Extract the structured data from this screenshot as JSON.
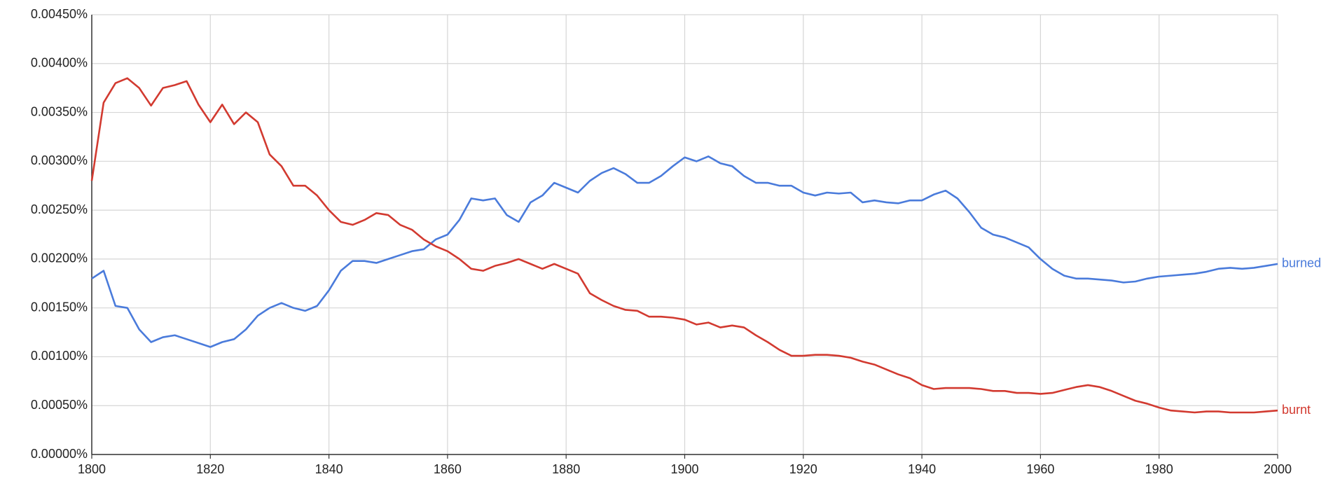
{
  "chart_data": {
    "type": "line",
    "x": [
      1800,
      1802,
      1804,
      1806,
      1808,
      1810,
      1812,
      1814,
      1816,
      1818,
      1820,
      1822,
      1824,
      1826,
      1828,
      1830,
      1832,
      1834,
      1836,
      1838,
      1840,
      1842,
      1844,
      1846,
      1848,
      1850,
      1852,
      1854,
      1856,
      1858,
      1860,
      1862,
      1864,
      1866,
      1868,
      1870,
      1872,
      1874,
      1876,
      1878,
      1880,
      1882,
      1884,
      1886,
      1888,
      1890,
      1892,
      1894,
      1896,
      1898,
      1900,
      1902,
      1904,
      1906,
      1908,
      1910,
      1912,
      1914,
      1916,
      1918,
      1920,
      1922,
      1924,
      1926,
      1928,
      1930,
      1932,
      1934,
      1936,
      1938,
      1940,
      1942,
      1944,
      1946,
      1948,
      1950,
      1952,
      1954,
      1956,
      1958,
      1960,
      1962,
      1964,
      1966,
      1968,
      1970,
      1972,
      1974,
      1976,
      1978,
      1980,
      1982,
      1984,
      1986,
      1988,
      1990,
      1992,
      1994,
      1996,
      1998,
      2000
    ],
    "series": [
      {
        "name": "burned",
        "color": "#4a7bdb",
        "values": [
          0.0018,
          0.00188,
          0.00152,
          0.0015,
          0.00128,
          0.00115,
          0.0012,
          0.00122,
          0.00118,
          0.00114,
          0.0011,
          0.00115,
          0.00118,
          0.00128,
          0.00142,
          0.0015,
          0.00155,
          0.0015,
          0.00147,
          0.00152,
          0.00168,
          0.00188,
          0.00198,
          0.00198,
          0.00196,
          0.002,
          0.00204,
          0.00208,
          0.0021,
          0.0022,
          0.00225,
          0.0024,
          0.00262,
          0.0026,
          0.00262,
          0.00245,
          0.00238,
          0.00258,
          0.00265,
          0.00278,
          0.00273,
          0.00268,
          0.0028,
          0.00288,
          0.00293,
          0.00287,
          0.00278,
          0.00278,
          0.00285,
          0.00295,
          0.00304,
          0.003,
          0.00305,
          0.00298,
          0.00295,
          0.00285,
          0.00278,
          0.00278,
          0.00275,
          0.00275,
          0.00268,
          0.00265,
          0.00268,
          0.00267,
          0.00268,
          0.00258,
          0.0026,
          0.00258,
          0.00257,
          0.0026,
          0.0026,
          0.00266,
          0.0027,
          0.00262,
          0.00248,
          0.00232,
          0.00225,
          0.00222,
          0.00217,
          0.00212,
          0.002,
          0.0019,
          0.00183,
          0.0018,
          0.0018,
          0.00179,
          0.00178,
          0.00176,
          0.00177,
          0.0018,
          0.00182,
          0.00183,
          0.00184,
          0.00185,
          0.00187,
          0.0019,
          0.00191,
          0.0019,
          0.00191,
          0.00193,
          0.00195
        ]
      },
      {
        "name": "burnt",
        "color": "#d23a30",
        "values": [
          0.0028,
          0.0036,
          0.0038,
          0.00385,
          0.00375,
          0.00357,
          0.00375,
          0.00378,
          0.00382,
          0.00358,
          0.0034,
          0.00358,
          0.00338,
          0.0035,
          0.0034,
          0.00307,
          0.00295,
          0.00275,
          0.00275,
          0.00265,
          0.0025,
          0.00238,
          0.00235,
          0.0024,
          0.00247,
          0.00245,
          0.00235,
          0.0023,
          0.0022,
          0.00213,
          0.00208,
          0.002,
          0.0019,
          0.00188,
          0.00193,
          0.00196,
          0.002,
          0.00195,
          0.0019,
          0.00195,
          0.0019,
          0.00185,
          0.00165,
          0.00158,
          0.00152,
          0.00148,
          0.00147,
          0.00141,
          0.00141,
          0.0014,
          0.00138,
          0.00133,
          0.00135,
          0.0013,
          0.00132,
          0.0013,
          0.00122,
          0.00115,
          0.00107,
          0.00101,
          0.00101,
          0.00102,
          0.00102,
          0.00101,
          0.00099,
          0.00095,
          0.00092,
          0.00087,
          0.00082,
          0.00078,
          0.00071,
          0.00067,
          0.00068,
          0.00068,
          0.00068,
          0.00067,
          0.00065,
          0.00065,
          0.00063,
          0.00063,
          0.00062,
          0.00063,
          0.00066,
          0.00069,
          0.00071,
          0.00069,
          0.00065,
          0.0006,
          0.00055,
          0.00052,
          0.00048,
          0.00045,
          0.00044,
          0.00043,
          0.00044,
          0.00044,
          0.00043,
          0.00043,
          0.00043,
          0.00044,
          0.00045
        ]
      }
    ],
    "xlim": [
      1800,
      2000
    ],
    "xticks": [
      1800,
      1820,
      1840,
      1860,
      1880,
      1900,
      1920,
      1940,
      1960,
      1980,
      2000
    ],
    "ylim": [
      0,
      0.0045
    ],
    "yticks": [
      {
        "value": 0,
        "label": "0.00000%"
      },
      {
        "value": 0.0005,
        "label": "0.00050%"
      },
      {
        "value": 0.001,
        "label": "0.00100%"
      },
      {
        "value": 0.0015,
        "label": "0.00150%"
      },
      {
        "value": 0.002,
        "label": "0.00200%"
      },
      {
        "value": 0.0025,
        "label": "0.00250%"
      },
      {
        "value": 0.003,
        "label": "0.00300%"
      },
      {
        "value": 0.0035,
        "label": "0.00350%"
      },
      {
        "value": 0.004,
        "label": "0.00400%"
      },
      {
        "value": 0.0045,
        "label": "0.00450%"
      }
    ],
    "grid": true
  }
}
